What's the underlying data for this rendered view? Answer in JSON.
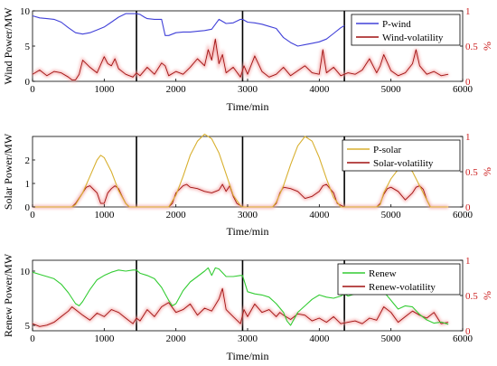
{
  "colors": {
    "wind": "#4040d8",
    "solar": "#d8b030",
    "renew": "#33cc33",
    "volatility": "#a01010",
    "volatility_glow": "#f4a0a0",
    "right_axis": "#cc2020",
    "frame": "#000000"
  },
  "chart_data": [
    {
      "type": "line",
      "ylabel": "Wind Power/MW",
      "xlabel": "Time/min",
      "right_ylabel": "%",
      "xlim": [
        0,
        6000
      ],
      "ylim": [
        0,
        10
      ],
      "right_ylim": [
        0,
        1
      ],
      "xticks": [
        "0",
        "1000",
        "2000",
        "3000",
        "4000",
        "5000",
        "6000"
      ],
      "yticks": [
        "0",
        "5",
        "10"
      ],
      "right_yticks": [
        "0",
        "0.5",
        "1"
      ],
      "separators": [
        1450,
        2930,
        4350
      ],
      "legend_position": "top-right",
      "series": [
        {
          "name": "P-wind",
          "axis": "left",
          "role": "power",
          "x": [
            0,
            100,
            200,
            300,
            400,
            500,
            600,
            700,
            800,
            900,
            1000,
            1100,
            1200,
            1300,
            1400,
            1450,
            1500,
            1560,
            1600,
            1700,
            1800,
            1850,
            1900,
            2000,
            2100,
            2200,
            2300,
            2400,
            2500,
            2600,
            2700,
            2800,
            2900,
            2930,
            3000,
            3100,
            3200,
            3300,
            3400,
            3500,
            3600,
            3700,
            3800,
            3900,
            4000,
            4100,
            4200,
            4300,
            4350
          ],
          "values": [
            9.3,
            9.0,
            8.9,
            8.8,
            8.4,
            7.6,
            6.9,
            6.7,
            6.9,
            7.3,
            7.7,
            8.4,
            9.1,
            9.6,
            9.6,
            9.6,
            9.5,
            9.1,
            8.9,
            8.8,
            8.8,
            6.5,
            6.5,
            6.9,
            7.0,
            7.0,
            7.1,
            7.2,
            7.4,
            8.8,
            8.2,
            8.3,
            8.8,
            8.8,
            8.4,
            8.3,
            8.1,
            7.8,
            7.5,
            6.2,
            5.5,
            5.0,
            5.2,
            5.4,
            5.6,
            6.0,
            6.8,
            7.6,
            7.9
          ]
        },
        {
          "name": "Wind-volatility",
          "axis": "right",
          "role": "volatility",
          "x": [
            0,
            100,
            200,
            300,
            400,
            500,
            550,
            600,
            650,
            700,
            800,
            900,
            1000,
            1050,
            1100,
            1150,
            1200,
            1300,
            1400,
            1450,
            1500,
            1600,
            1700,
            1800,
            1850,
            1900,
            2000,
            2100,
            2200,
            2300,
            2400,
            2450,
            2500,
            2550,
            2600,
            2650,
            2700,
            2800,
            2900,
            2950,
            3000,
            3100,
            3200,
            3300,
            3400,
            3500,
            3600,
            3700,
            3800,
            3900,
            4000,
            4050,
            4100,
            4200,
            4300,
            4400,
            4500,
            4600,
            4700,
            4800,
            4850,
            4900,
            5000,
            5100,
            5200,
            5300,
            5350,
            5400,
            5500,
            5600,
            5700,
            5800
          ],
          "values": [
            0.1,
            0.16,
            0.08,
            0.14,
            0.12,
            0.06,
            0.02,
            0.02,
            0.1,
            0.3,
            0.2,
            0.12,
            0.35,
            0.25,
            0.22,
            0.32,
            0.18,
            0.1,
            0.06,
            0.12,
            0.08,
            0.2,
            0.1,
            0.26,
            0.22,
            0.08,
            0.14,
            0.1,
            0.2,
            0.32,
            0.22,
            0.45,
            0.3,
            0.6,
            0.25,
            0.38,
            0.12,
            0.2,
            0.06,
            0.22,
            0.1,
            0.36,
            0.14,
            0.06,
            0.1,
            0.2,
            0.08,
            0.15,
            0.22,
            0.12,
            0.1,
            0.45,
            0.12,
            0.2,
            0.08,
            0.12,
            0.1,
            0.16,
            0.32,
            0.12,
            0.22,
            0.38,
            0.15,
            0.08,
            0.12,
            0.25,
            0.45,
            0.22,
            0.1,
            0.14,
            0.08,
            0.1
          ]
        }
      ]
    },
    {
      "type": "line",
      "ylabel": "Solar Power/MW",
      "xlabel": "Time/min",
      "right_ylabel": "%",
      "xlim": [
        0,
        6000
      ],
      "ylim": [
        0,
        3
      ],
      "right_ylim": [
        0,
        1
      ],
      "xticks": [
        "0",
        "1000",
        "2000",
        "3000",
        "4000",
        "5000",
        "6000"
      ],
      "yticks": [
        "0",
        "1",
        "2"
      ],
      "right_yticks": [
        "0",
        "0.5",
        "1"
      ],
      "separators": [
        1450,
        2930,
        4350
      ],
      "legend_position": "top-right",
      "series": [
        {
          "name": "P-solar",
          "axis": "left",
          "role": "power",
          "x": [
            0,
            550,
            600,
            700,
            800,
            900,
            950,
            1000,
            1100,
            1200,
            1300,
            1350,
            1450,
            1900,
            2000,
            2100,
            2200,
            2300,
            2400,
            2500,
            2600,
            2700,
            2800,
            2900,
            2930,
            3350,
            3400,
            3500,
            3600,
            3700,
            3800,
            3900,
            4000,
            4100,
            4200,
            4300,
            4350,
            4800,
            4850,
            4900,
            5000,
            5100,
            5200,
            5300,
            5400,
            5500,
            5550,
            5800
          ],
          "values": [
            0,
            0,
            0.1,
            0.6,
            1.3,
            2.0,
            2.2,
            2.1,
            1.5,
            0.7,
            0.15,
            0,
            0,
            0,
            0.5,
            1.3,
            2.2,
            2.8,
            3.1,
            2.9,
            2.3,
            1.4,
            0.5,
            0.05,
            0,
            0,
            0.2,
            0.9,
            1.8,
            2.6,
            3.0,
            2.8,
            2.1,
            1.2,
            0.4,
            0,
            0,
            0,
            0.1,
            0.6,
            1.2,
            1.6,
            1.8,
            1.5,
            0.9,
            0.3,
            0,
            0
          ]
        },
        {
          "name": "Solar-volatility",
          "axis": "right",
          "role": "volatility",
          "x": [
            0,
            550,
            600,
            700,
            750,
            800,
            850,
            900,
            950,
            1000,
            1050,
            1100,
            1150,
            1200,
            1250,
            1300,
            1350,
            1450,
            1900,
            1950,
            2000,
            2100,
            2150,
            2200,
            2300,
            2400,
            2500,
            2600,
            2650,
            2700,
            2750,
            2800,
            2850,
            2930,
            3350,
            3400,
            3450,
            3500,
            3600,
            3700,
            3800,
            3900,
            4000,
            4050,
            4100,
            4150,
            4200,
            4250,
            4350,
            4800,
            4850,
            4900,
            4950,
            5000,
            5100,
            5200,
            5300,
            5350,
            5400,
            5450,
            5500,
            5550,
            5800
          ],
          "values": [
            0,
            0,
            0.05,
            0.2,
            0.28,
            0.3,
            0.25,
            0.2,
            0.05,
            0.05,
            0.2,
            0.26,
            0.3,
            0.26,
            0.15,
            0.05,
            0,
            0,
            0,
            0.05,
            0.2,
            0.3,
            0.32,
            0.28,
            0.26,
            0.22,
            0.2,
            0.24,
            0.32,
            0.22,
            0.3,
            0.15,
            0.05,
            0,
            0,
            0.05,
            0.2,
            0.28,
            0.26,
            0.22,
            0.12,
            0.15,
            0.22,
            0.3,
            0.32,
            0.26,
            0.2,
            0.05,
            0,
            0,
            0.05,
            0.18,
            0.26,
            0.28,
            0.22,
            0.1,
            0.2,
            0.28,
            0.3,
            0.25,
            0.1,
            0,
            0
          ]
        }
      ]
    },
    {
      "type": "line",
      "ylabel": "Renew Power/MW",
      "xlabel": "Time/min",
      "right_ylabel": "%",
      "xlim": [
        0,
        6000
      ],
      "ylim": [
        4.5,
        11
      ],
      "right_ylim": [
        0,
        1
      ],
      "xticks": [
        "0",
        "1000",
        "2000",
        "3000",
        "4000",
        "5000",
        "6000"
      ],
      "yticks": [
        "5",
        "10"
      ],
      "right_yticks": [
        "0",
        "0.5",
        "1"
      ],
      "separators": [
        1450,
        2930,
        4350
      ],
      "legend_position": "top-right",
      "series": [
        {
          "name": "Renew",
          "axis": "left",
          "role": "power",
          "x": [
            0,
            100,
            200,
            300,
            400,
            500,
            600,
            650,
            700,
            800,
            900,
            1000,
            1100,
            1200,
            1300,
            1400,
            1450,
            1500,
            1600,
            1700,
            1800,
            1900,
            1950,
            2000,
            2100,
            2200,
            2300,
            2400,
            2450,
            2500,
            2550,
            2600,
            2700,
            2800,
            2900,
            2930,
            3000,
            3100,
            3200,
            3300,
            3400,
            3500,
            3550,
            3600,
            3650,
            3700,
            3800,
            3900,
            4000,
            4100,
            4200,
            4300,
            4350,
            4400,
            4500,
            4600,
            4700,
            4800,
            4900,
            5000,
            5100,
            5200,
            5300,
            5400,
            5500,
            5600,
            5700,
            5800
          ],
          "values": [
            9.9,
            9.7,
            9.5,
            9.3,
            8.8,
            8.0,
            7.0,
            6.8,
            7.2,
            8.3,
            9.2,
            9.6,
            9.9,
            10.1,
            10.0,
            10.1,
            10.1,
            9.8,
            9.6,
            9.3,
            8.5,
            7.3,
            6.8,
            7.0,
            8.2,
            9.0,
            9.5,
            10.0,
            10.3,
            9.6,
            10.3,
            10.2,
            9.5,
            9.5,
            9.6,
            9.6,
            8.1,
            7.9,
            7.8,
            7.6,
            7.0,
            6.2,
            5.4,
            5.0,
            5.6,
            6.2,
            6.8,
            7.4,
            7.8,
            7.6,
            7.5,
            7.7,
            7.9,
            7.7,
            7.9,
            8.0,
            8.2,
            8.3,
            8.1,
            7.3,
            6.5,
            6.8,
            6.7,
            6.0,
            5.5,
            5.2,
            5.3,
            5.1
          ]
        },
        {
          "name": "Renew-volatility",
          "axis": "right",
          "role": "volatility",
          "x": [
            0,
            100,
            200,
            300,
            400,
            500,
            550,
            600,
            700,
            800,
            900,
            1000,
            1100,
            1200,
            1300,
            1400,
            1450,
            1500,
            1600,
            1700,
            1800,
            1900,
            2000,
            2100,
            2200,
            2300,
            2400,
            2500,
            2600,
            2650,
            2700,
            2800,
            2900,
            2950,
            3000,
            3100,
            3200,
            3300,
            3400,
            3450,
            3500,
            3600,
            3700,
            3800,
            3900,
            4000,
            4100,
            4200,
            4300,
            4400,
            4500,
            4600,
            4700,
            4800,
            4900,
            5000,
            5100,
            5200,
            5300,
            5400,
            5500,
            5600,
            5700,
            5800
          ],
          "values": [
            0.1,
            0.06,
            0.08,
            0.12,
            0.2,
            0.28,
            0.34,
            0.3,
            0.22,
            0.15,
            0.25,
            0.2,
            0.3,
            0.26,
            0.18,
            0.1,
            0.18,
            0.14,
            0.3,
            0.2,
            0.34,
            0.4,
            0.26,
            0.3,
            0.38,
            0.22,
            0.32,
            0.28,
            0.45,
            0.6,
            0.3,
            0.2,
            0.1,
            0.3,
            0.2,
            0.38,
            0.26,
            0.3,
            0.2,
            0.26,
            0.22,
            0.16,
            0.24,
            0.22,
            0.14,
            0.18,
            0.12,
            0.2,
            0.1,
            0.12,
            0.14,
            0.1,
            0.18,
            0.15,
            0.34,
            0.26,
            0.12,
            0.2,
            0.28,
            0.22,
            0.18,
            0.26,
            0.1,
            0.12
          ]
        }
      ]
    }
  ]
}
